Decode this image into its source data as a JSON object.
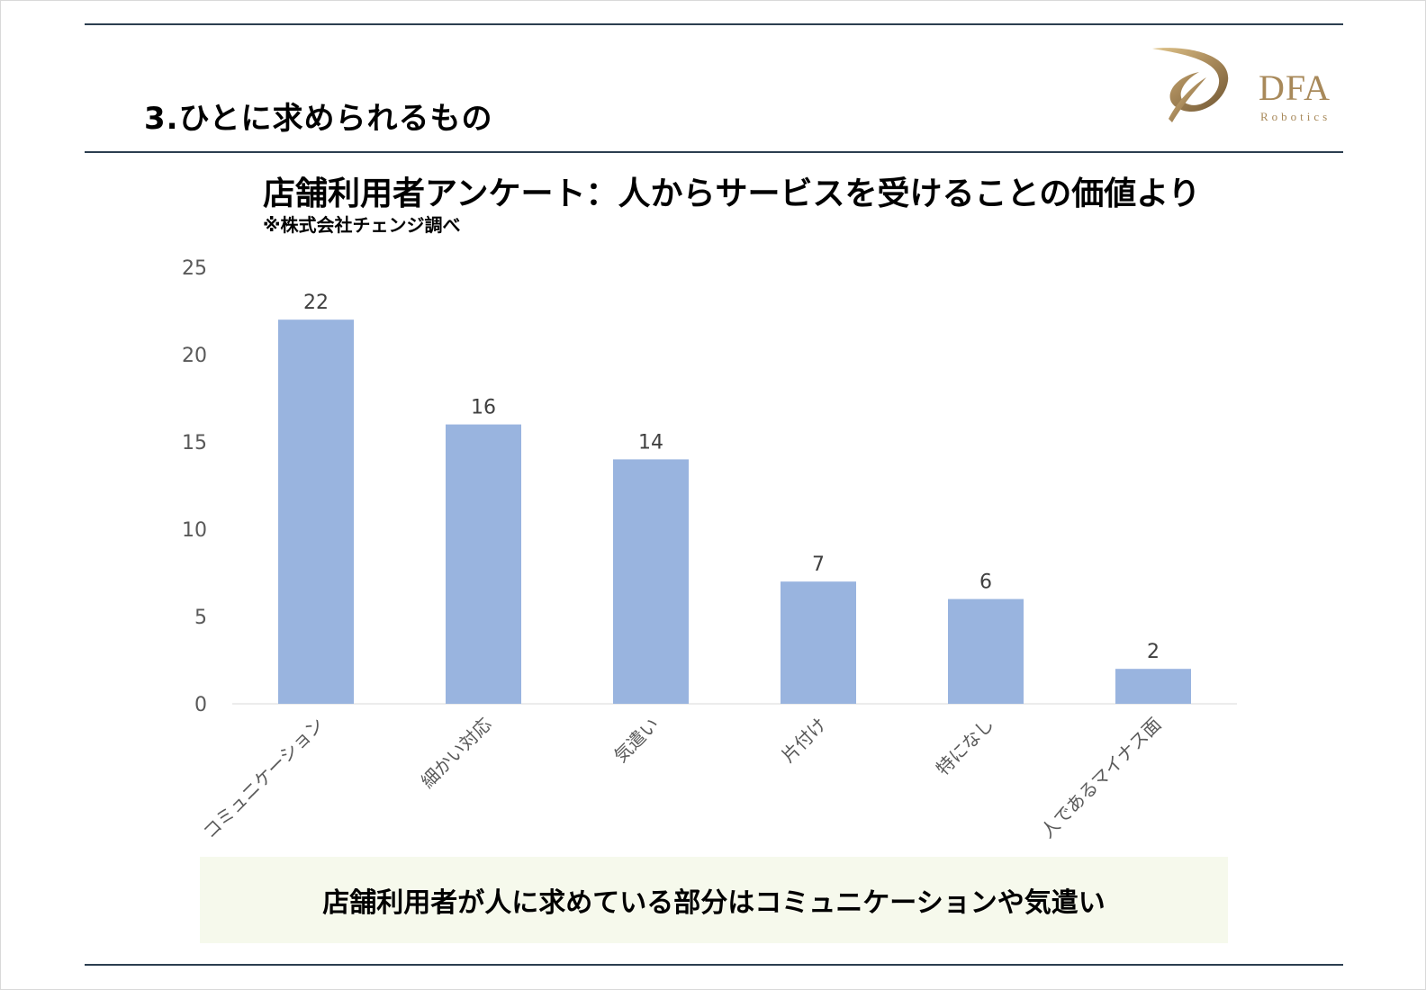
{
  "slide": {
    "title": "3.ひとに求められるもの",
    "summary": "店舗利用者が人に求めている部分はコミュニケーションや気遣い"
  },
  "logo": {
    "name": "DFA",
    "sub": "Robotics",
    "color": "#a8895a",
    "icon": "swoosh-icon"
  },
  "colors": {
    "bar": "#99b4df",
    "rule": "#2c3e50",
    "summary_bg": "#f6f9ec"
  },
  "chart_data": {
    "type": "bar",
    "title": "店舗利用者アンケート：人からサービスを受けることの価値より",
    "subtitle": "※株式会社チェンジ調べ",
    "categories": [
      "コミュニケーション",
      "細かい対応",
      "気遣い",
      "片付け",
      "特になし",
      "人であるマイナス面"
    ],
    "values": [
      22,
      16,
      14,
      7,
      6,
      2
    ],
    "ylim": [
      0,
      25
    ],
    "yticks": [
      0,
      5,
      10,
      15,
      20,
      25
    ],
    "grid": false,
    "data_labels": true,
    "legend": "none"
  }
}
